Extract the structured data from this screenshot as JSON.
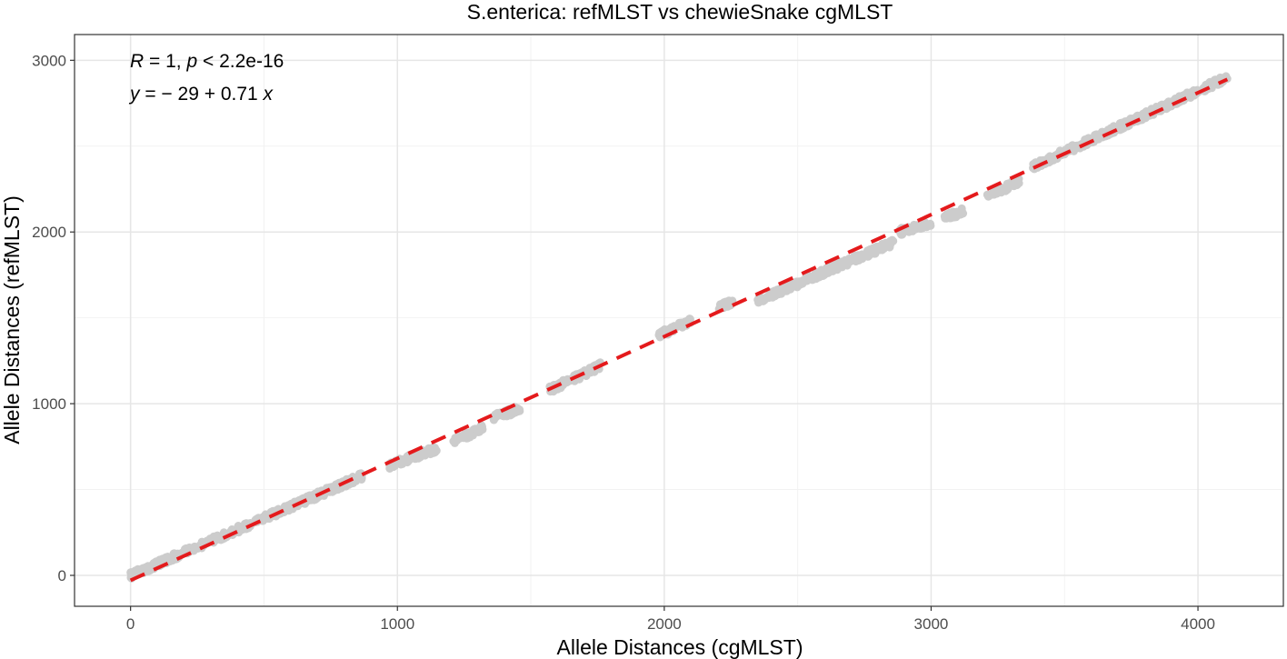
{
  "chart_data": {
    "type": "scatter",
    "title": "S.enterica: refMLST vs chewieSnake cgMLST",
    "xlabel": "Allele Distances (cgMLST)",
    "ylabel": "Allele Distances (refMLST)",
    "xlim": [
      -210,
      4320
    ],
    "ylim": [
      -180,
      3150
    ],
    "x_ticks": [
      0,
      1000,
      2000,
      3000,
      4000
    ],
    "y_ticks": [
      0,
      1000,
      2000,
      3000
    ],
    "x_tick_labels": [
      "0",
      "1000",
      "2000",
      "3000",
      "4000"
    ],
    "y_tick_labels": [
      "0",
      "1000",
      "2000",
      "3000"
    ],
    "grid": true,
    "point_color": "#cccccc",
    "fit_line": {
      "intercept": -29,
      "slope": 0.71,
      "x_range": [
        0,
        4110
      ],
      "color": "#e41a1c",
      "style": "dashed"
    },
    "annotations": {
      "line1": {
        "R": "R",
        "eq1": " = 1, ",
        "p": "p",
        "eq2": " < 2.2e-16"
      },
      "line2": {
        "y": "y",
        "eq": " = − 29 + 0.71 ",
        "x": "x"
      }
    },
    "point_clusters": [
      {
        "x": [
          0,
          870
        ],
        "y": [
          0,
          580
        ]
      },
      {
        "x": [
          970,
          1150
        ],
        "y": [
          640,
          740
        ]
      },
      {
        "x": [
          1210,
          1320
        ],
        "y": [
          780,
          860
        ]
      },
      {
        "x": [
          1360,
          1460
        ],
        "y": [
          920,
          970
        ]
      },
      {
        "x": [
          1570,
          1760
        ],
        "y": [
          1080,
          1220
        ]
      },
      {
        "x": [
          1980,
          2100
        ],
        "y": [
          1400,
          1480
        ]
      },
      {
        "x": [
          2200,
          2260
        ],
        "y": [
          1560,
          1590
        ]
      },
      {
        "x": [
          2350,
          2860
        ],
        "y": [
          1600,
          1940
        ]
      },
      {
        "x": [
          2880,
          3000
        ],
        "y": [
          2000,
          2050
        ]
      },
      {
        "x": [
          3050,
          3120
        ],
        "y": [
          2080,
          2120
        ]
      },
      {
        "x": [
          3210,
          3330
        ],
        "y": [
          2200,
          2300
        ]
      },
      {
        "x": [
          3380,
          4110
        ],
        "y": [
          2380,
          2900
        ]
      }
    ]
  }
}
